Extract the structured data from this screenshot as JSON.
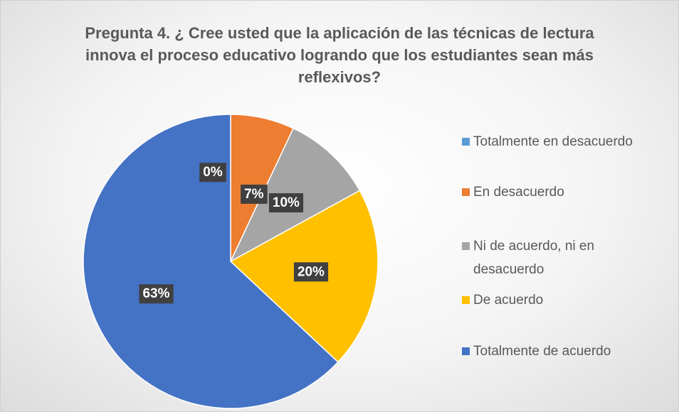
{
  "chart_data": {
    "type": "pie",
    "title": "Pregunta 4. ¿ Cree usted que la aplicación de las técnicas de lectura innova el proceso educativo logrando que los estudiantes sean más reflexivos?",
    "categories": [
      "Totalmente en desacuerdo",
      "En desacuerdo",
      "Ni de acuerdo, ni en desacuerdo",
      "De acuerdo",
      "Totalmente de acuerdo"
    ],
    "values": [
      0,
      7,
      10,
      20,
      63
    ],
    "value_labels": [
      "0%",
      "7%",
      "10%",
      "20%",
      "63%"
    ],
    "colors": [
      "#5b9bd5",
      "#ed7d31",
      "#a5a5a5",
      "#ffc000",
      "#4472c4"
    ],
    "legend": "right"
  }
}
